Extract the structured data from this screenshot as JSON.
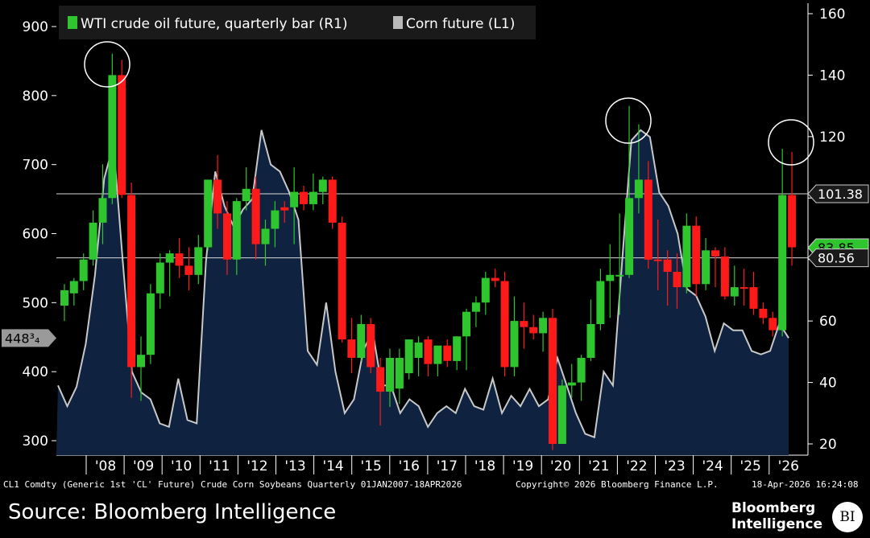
{
  "legend": [
    {
      "label": "WTI crude oil future, quarterly bar (R1)",
      "color": "#2ec52e"
    },
    {
      "label": "Corn future (L1)",
      "color": "#b9b9b9"
    }
  ],
  "tags": {
    "corn_last": "448³₄",
    "level_high": "101.38",
    "level_mid": "83.85",
    "level_low": "80.56"
  },
  "footer": {
    "query": "CL1 Comdty (Generic 1st 'CL' Future) Crude Corn Soybeans Quarterly 01JAN2007-18APR2026",
    "copyright": "Copyright© 2026 Bloomberg Finance L.P.",
    "timestamp": "18-Apr-2026 16:24:08"
  },
  "source": "Source: Bloomberg Intelligence",
  "brand": {
    "line1": "Bloomberg",
    "line2": "Intelligence",
    "badge": "BI"
  },
  "chart_data": {
    "type": "line",
    "left_axis": {
      "ticks": [
        "300",
        "400",
        "500",
        "600",
        "700",
        "800",
        "900"
      ],
      "range": [
        270,
        910
      ]
    },
    "right_axis": {
      "ticks": [
        "20",
        "40",
        "60",
        "80",
        "100",
        "120",
        "140",
        "160"
      ],
      "range": [
        15,
        160
      ]
    },
    "x_ticks": [
      "'08",
      "'09",
      "'10",
      "'11",
      "'12",
      "'13",
      "'14",
      "'15",
      "'16",
      "'17",
      "'18",
      "'19",
      "'20",
      "'21",
      "'22",
      "'23",
      "'24",
      "'25",
      "'26"
    ],
    "reference_lines": [
      101.38,
      80.56
    ],
    "corn_series": {
      "name": "Corn future (L1)",
      "values": [
        380,
        350,
        378,
        440,
        540,
        680,
        730,
        560,
        400,
        370,
        360,
        325,
        320,
        390,
        330,
        325,
        560,
        690,
        640,
        610,
        635,
        650,
        750,
        700,
        690,
        660,
        620,
        430,
        410,
        500,
        400,
        340,
        360,
        430,
        460,
        380,
        380,
        340,
        360,
        350,
        320,
        340,
        350,
        340,
        375,
        350,
        345,
        390,
        340,
        365,
        350,
        375,
        350,
        360,
        420,
        380,
        340,
        310,
        305,
        400,
        380,
        560,
        735,
        750,
        740,
        660,
        640,
        600,
        520,
        510,
        480,
        430,
        470,
        460,
        460,
        430,
        425,
        430,
        470,
        448.75
      ]
    },
    "oil_bars": [
      {
        "o": 65,
        "h": 72,
        "l": 60,
        "c": 70,
        "dir": "up"
      },
      {
        "o": 69,
        "h": 74,
        "l": 65,
        "c": 73,
        "dir": "up"
      },
      {
        "o": 73,
        "h": 82,
        "l": 70,
        "c": 80,
        "dir": "up"
      },
      {
        "o": 80,
        "h": 96,
        "l": 78,
        "c": 92,
        "dir": "up"
      },
      {
        "o": 92,
        "h": 111,
        "l": 85,
        "c": 100,
        "dir": "up"
      },
      {
        "o": 100,
        "h": 147,
        "l": 98,
        "c": 140,
        "dir": "up"
      },
      {
        "o": 140,
        "h": 145,
        "l": 100,
        "c": 101,
        "dir": "down"
      },
      {
        "o": 101,
        "h": 105,
        "l": 35,
        "c": 45,
        "dir": "down"
      },
      {
        "o": 45,
        "h": 55,
        "l": 34,
        "c": 49,
        "dir": "up"
      },
      {
        "o": 49,
        "h": 72,
        "l": 46,
        "c": 69,
        "dir": "up"
      },
      {
        "o": 69,
        "h": 82,
        "l": 64,
        "c": 79,
        "dir": "up"
      },
      {
        "o": 79,
        "h": 83,
        "l": 68,
        "c": 82,
        "dir": "up"
      },
      {
        "o": 82,
        "h": 87,
        "l": 74,
        "c": 78,
        "dir": "down"
      },
      {
        "o": 78,
        "h": 84,
        "l": 70,
        "c": 75,
        "dir": "down"
      },
      {
        "o": 75,
        "h": 88,
        "l": 72,
        "c": 84,
        "dir": "up"
      },
      {
        "o": 84,
        "h": 105,
        "l": 83,
        "c": 106,
        "dir": "up"
      },
      {
        "o": 106,
        "h": 114,
        "l": 90,
        "c": 95,
        "dir": "down"
      },
      {
        "o": 95,
        "h": 99,
        "l": 75,
        "c": 80,
        "dir": "down"
      },
      {
        "o": 80,
        "h": 100,
        "l": 75,
        "c": 99,
        "dir": "up"
      },
      {
        "o": 99,
        "h": 110,
        "l": 96,
        "c": 103,
        "dir": "up"
      },
      {
        "o": 103,
        "h": 107,
        "l": 80,
        "c": 85,
        "dir": "down"
      },
      {
        "o": 85,
        "h": 93,
        "l": 78,
        "c": 90,
        "dir": "up"
      },
      {
        "o": 90,
        "h": 99,
        "l": 84,
        "c": 96,
        "dir": "up"
      },
      {
        "o": 96,
        "h": 99,
        "l": 92,
        "c": 97,
        "dir": "down"
      },
      {
        "o": 97,
        "h": 110,
        "l": 85,
        "c": 102,
        "dir": "up"
      },
      {
        "o": 102,
        "h": 104,
        "l": 96,
        "c": 98,
        "dir": "down"
      },
      {
        "o": 98,
        "h": 108,
        "l": 96,
        "c": 102,
        "dir": "up"
      },
      {
        "o": 102,
        "h": 107,
        "l": 98,
        "c": 106,
        "dir": "up"
      },
      {
        "o": 106,
        "h": 107,
        "l": 90,
        "c": 92,
        "dir": "down"
      },
      {
        "o": 92,
        "h": 94,
        "l": 53,
        "c": 54,
        "dir": "down"
      },
      {
        "o": 54,
        "h": 61,
        "l": 43,
        "c": 48,
        "dir": "down"
      },
      {
        "o": 48,
        "h": 62,
        "l": 47,
        "c": 59,
        "dir": "up"
      },
      {
        "o": 59,
        "h": 61,
        "l": 43,
        "c": 45,
        "dir": "down"
      },
      {
        "o": 45,
        "h": 48,
        "l": 26,
        "c": 37,
        "dir": "down"
      },
      {
        "o": 37,
        "h": 51,
        "l": 32,
        "c": 48,
        "dir": "up"
      },
      {
        "o": 38,
        "h": 51,
        "l": 33,
        "c": 48,
        "dir": "up"
      },
      {
        "o": 43,
        "h": 54,
        "l": 41,
        "c": 54,
        "dir": "up"
      },
      {
        "o": 48,
        "h": 55,
        "l": 42,
        "c": 53,
        "dir": "up"
      },
      {
        "o": 54,
        "h": 55,
        "l": 42,
        "c": 46,
        "dir": "down"
      },
      {
        "o": 46,
        "h": 52,
        "l": 42,
        "c": 52,
        "dir": "up"
      },
      {
        "o": 52,
        "h": 54,
        "l": 45,
        "c": 47,
        "dir": "down"
      },
      {
        "o": 47,
        "h": 55,
        "l": 44,
        "c": 55,
        "dir": "up"
      },
      {
        "o": 55,
        "h": 64,
        "l": 44,
        "c": 63,
        "dir": "up"
      },
      {
        "o": 63,
        "h": 68,
        "l": 58,
        "c": 66,
        "dir": "up"
      },
      {
        "o": 66,
        "h": 76,
        "l": 62,
        "c": 74,
        "dir": "up"
      },
      {
        "o": 74,
        "h": 77,
        "l": 71,
        "c": 73,
        "dir": "down"
      },
      {
        "o": 73,
        "h": 76,
        "l": 42,
        "c": 45,
        "dir": "down"
      },
      {
        "o": 45,
        "h": 68,
        "l": 42,
        "c": 60,
        "dir": "up"
      },
      {
        "o": 60,
        "h": 66,
        "l": 51,
        "c": 58,
        "dir": "down"
      },
      {
        "o": 58,
        "h": 62,
        "l": 54,
        "c": 56,
        "dir": "down"
      },
      {
        "o": 56,
        "h": 63,
        "l": 50,
        "c": 61,
        "dir": "up"
      },
      {
        "o": 61,
        "h": 64,
        "l": 18,
        "c": 20,
        "dir": "down"
      },
      {
        "o": 20,
        "h": 41,
        "l": 20,
        "c": 39,
        "dir": "up"
      },
      {
        "o": 39,
        "h": 46,
        "l": 35,
        "c": 40,
        "dir": "up"
      },
      {
        "o": 40,
        "h": 49,
        "l": 34,
        "c": 48,
        "dir": "up"
      },
      {
        "o": 48,
        "h": 67,
        "l": 47,
        "c": 59,
        "dir": "up"
      },
      {
        "o": 59,
        "h": 77,
        "l": 57,
        "c": 73,
        "dir": "up"
      },
      {
        "o": 73,
        "h": 85,
        "l": 61,
        "c": 75,
        "dir": "up"
      },
      {
        "o": 75,
        "h": 95,
        "l": 62,
        "c": 75,
        "dir": "up"
      },
      {
        "o": 75,
        "h": 130,
        "l": 74,
        "c": 100,
        "dir": "up"
      },
      {
        "o": 100,
        "h": 124,
        "l": 95,
        "c": 106,
        "dir": "up"
      },
      {
        "o": 106,
        "h": 112,
        "l": 77,
        "c": 80,
        "dir": "down"
      },
      {
        "o": 80,
        "h": 93,
        "l": 70,
        "c": 80,
        "dir": "down"
      },
      {
        "o": 80,
        "h": 83,
        "l": 65,
        "c": 76,
        "dir": "down"
      },
      {
        "o": 76,
        "h": 82,
        "l": 64,
        "c": 71,
        "dir": "down"
      },
      {
        "o": 71,
        "h": 95,
        "l": 69,
        "c": 91,
        "dir": "up"
      },
      {
        "o": 91,
        "h": 94,
        "l": 68,
        "c": 72,
        "dir": "down"
      },
      {
        "o": 72,
        "h": 87,
        "l": 70,
        "c": 83,
        "dir": "up"
      },
      {
        "o": 83,
        "h": 84,
        "l": 71,
        "c": 81,
        "dir": "down"
      },
      {
        "o": 81,
        "h": 84,
        "l": 67,
        "c": 68,
        "dir": "down"
      },
      {
        "o": 68,
        "h": 78,
        "l": 65,
        "c": 71,
        "dir": "up"
      },
      {
        "o": 71,
        "h": 77,
        "l": 65,
        "c": 71,
        "dir": "down"
      },
      {
        "o": 71,
        "h": 76,
        "l": 62,
        "c": 64,
        "dir": "down"
      },
      {
        "o": 64,
        "h": 66,
        "l": 59,
        "c": 61,
        "dir": "down"
      },
      {
        "o": 61,
        "h": 63,
        "l": 55,
        "c": 57,
        "dir": "down"
      },
      {
        "o": 57,
        "h": 116,
        "l": 55,
        "c": 101,
        "dir": "up"
      },
      {
        "o": 101,
        "h": 115,
        "l": 78,
        "c": 84,
        "dir": "down"
      }
    ],
    "highlight_circles": [
      "2008 peak",
      "2022 peak",
      "2026 spike"
    ]
  }
}
